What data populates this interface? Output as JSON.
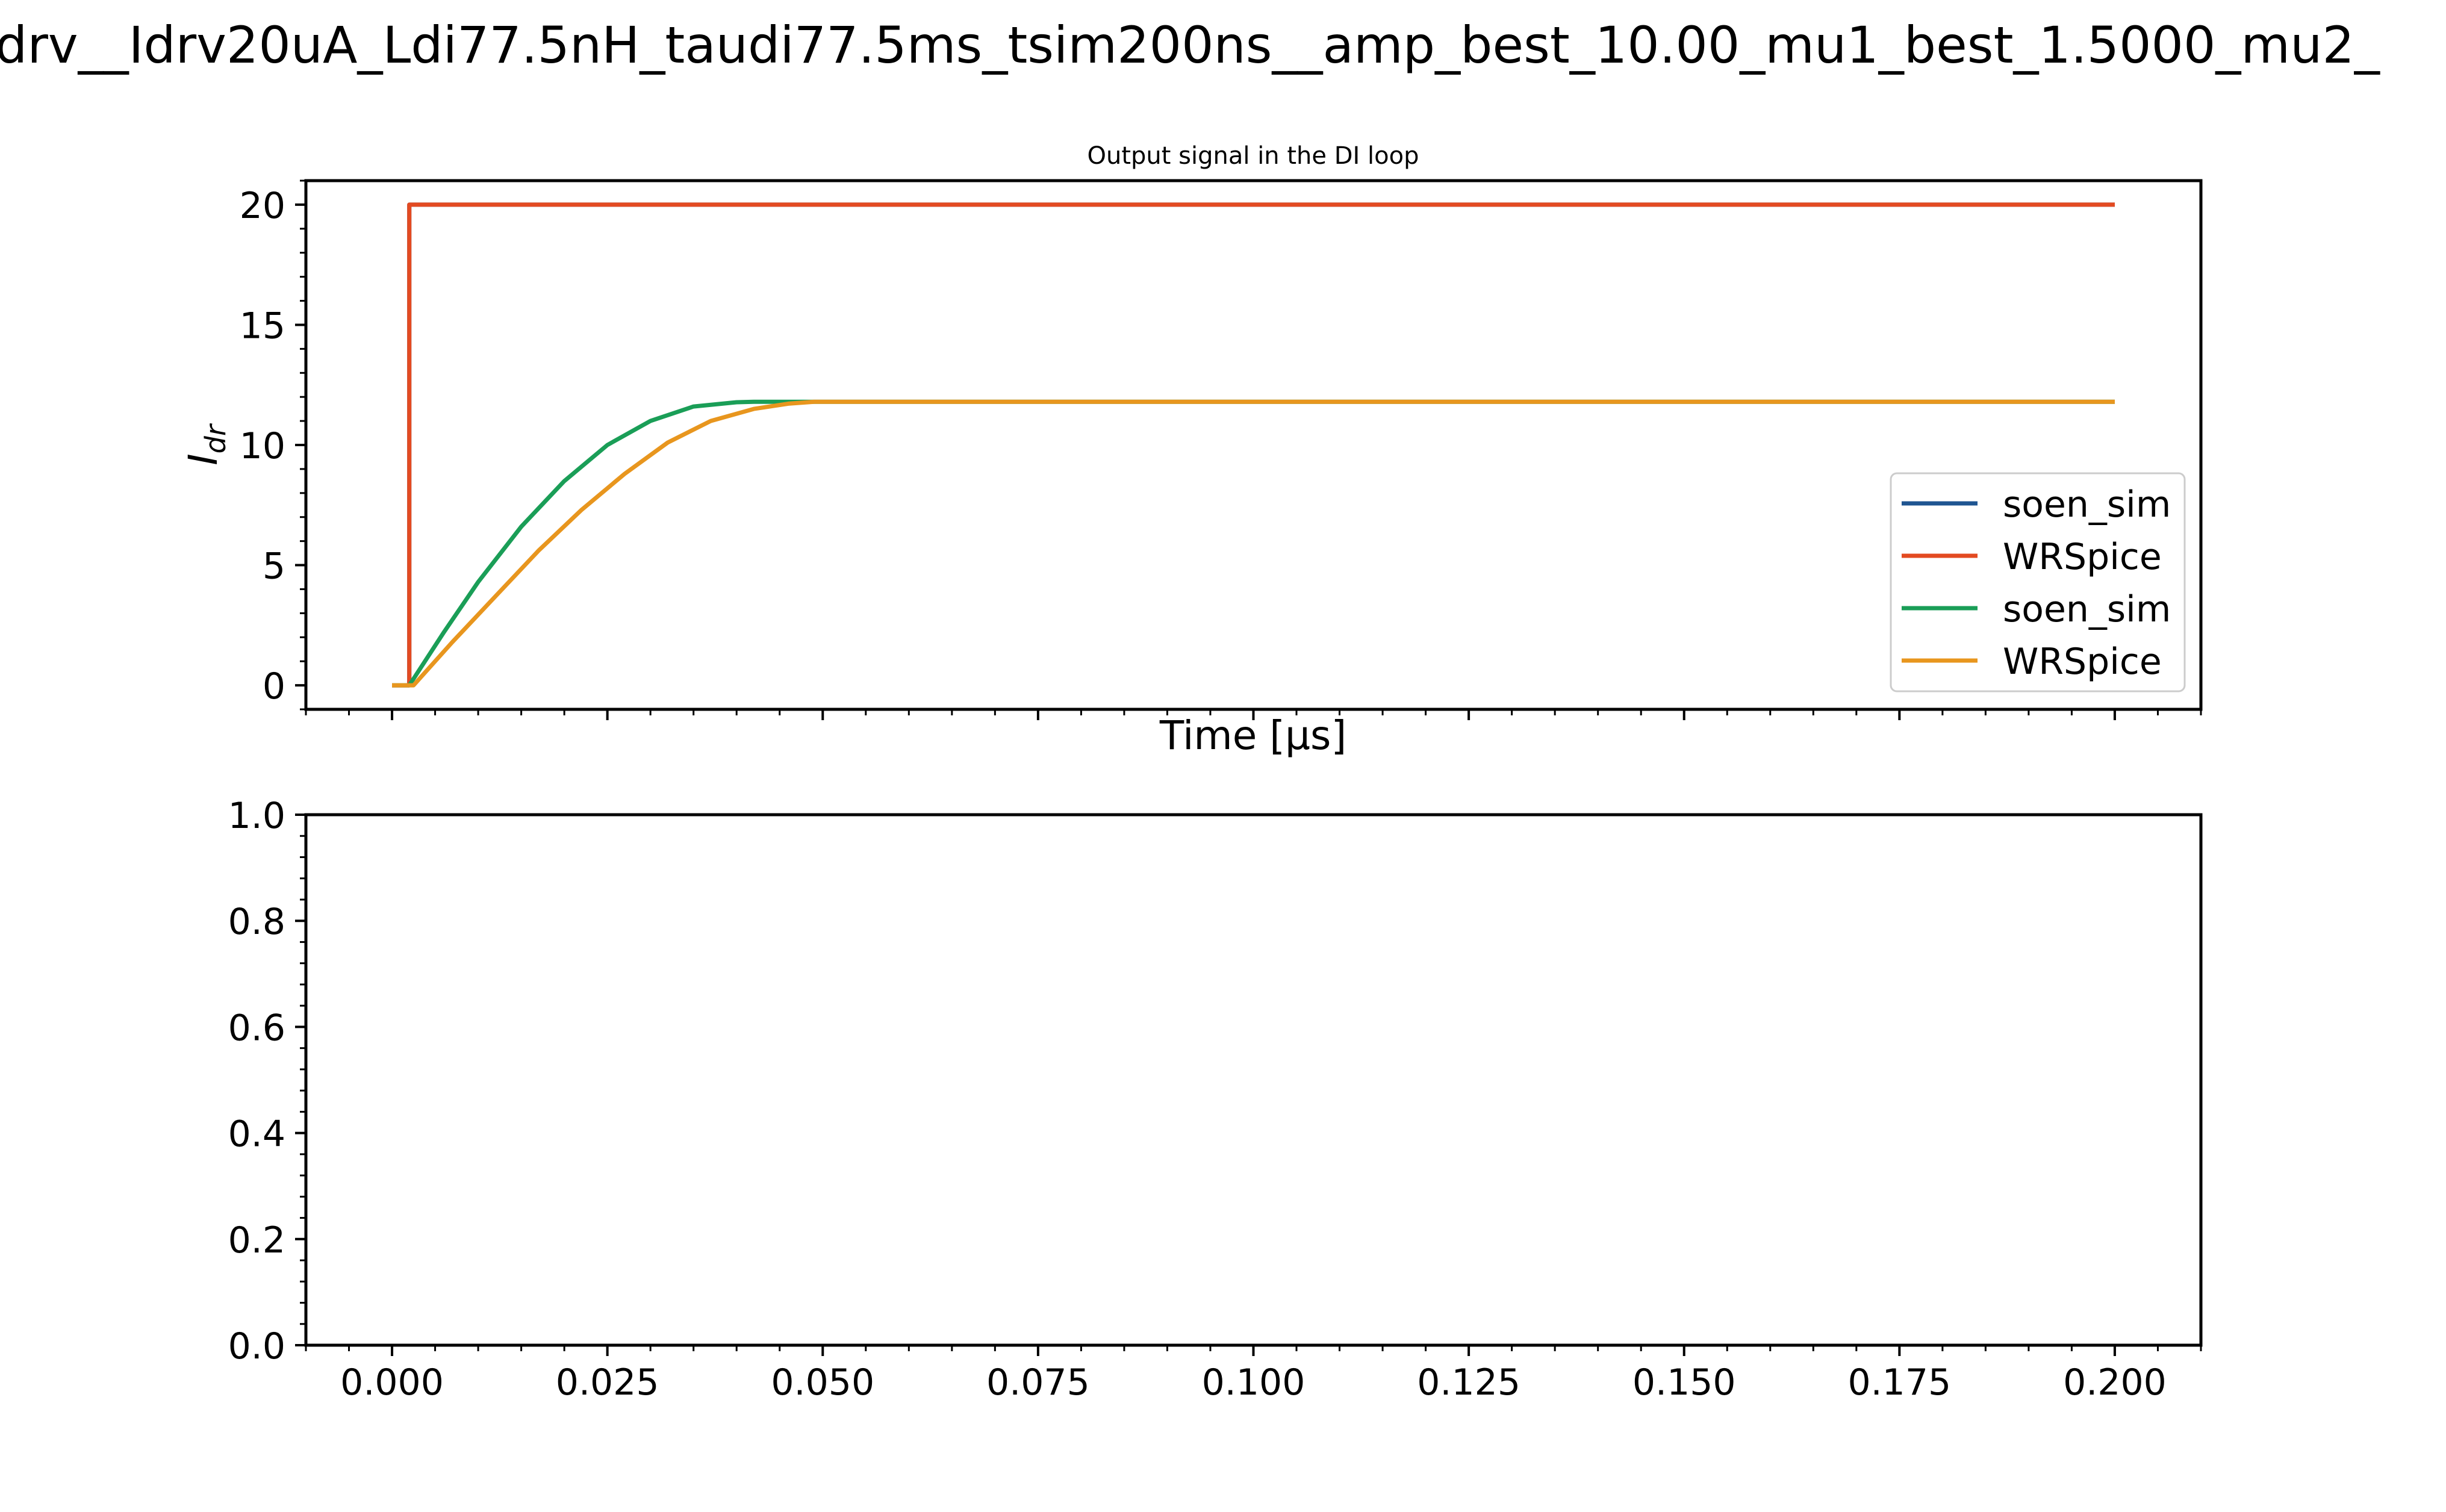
{
  "figure": {
    "suptitle": "drv__Idrv20uA_Ldi77.5nH_taudi77.5ms_tsim200ns__amp_best_10.00_mu1_best_1.5000_mu2_"
  },
  "colors": {
    "soen_sim_1": "#1f5591",
    "wrspice_1": "#e34a21",
    "soen_sim_2": "#1a9e57",
    "wrspice_2": "#e8961e"
  },
  "chart_data": [
    {
      "type": "line",
      "title": "Output signal in the DI loop",
      "xlabel": "Time [μs]",
      "ylabel_main": "I",
      "ylabel_sub": "dr",
      "xlim": [
        -0.01,
        0.21
      ],
      "ylim": [
        -1,
        21
      ],
      "xticks": [
        0.0,
        0.025,
        0.05,
        0.075,
        0.1,
        0.125,
        0.15,
        0.175,
        0.2
      ],
      "yticks": [
        0,
        5,
        10,
        15,
        20
      ],
      "ytick_labels": [
        "0",
        "5",
        "10",
        "15",
        "20"
      ],
      "grid": false,
      "legend_position": "lower right",
      "legend": [
        "soen_sim",
        "WRSpice",
        "soen_sim",
        "WRSpice"
      ],
      "series": [
        {
          "name": "soen_sim",
          "color_key": "soen_sim_1",
          "x": [
            0.0,
            0.002,
            0.002,
            0.2
          ],
          "y": [
            0,
            0,
            20,
            20
          ]
        },
        {
          "name": "WRSpice",
          "color_key": "wrspice_1",
          "x": [
            0.0,
            0.002,
            0.002,
            0.2
          ],
          "y": [
            0,
            0,
            20,
            20
          ]
        },
        {
          "name": "soen_sim",
          "color_key": "soen_sim_2",
          "x": [
            0.0,
            0.002,
            0.006,
            0.01,
            0.015,
            0.02,
            0.025,
            0.03,
            0.035,
            0.04,
            0.042,
            0.045,
            0.05,
            0.2
          ],
          "y": [
            0,
            0,
            2.2,
            4.3,
            6.6,
            8.5,
            10.0,
            11.0,
            11.6,
            11.78,
            11.8,
            11.8,
            11.8,
            11.8
          ]
        },
        {
          "name": "WRSpice",
          "color_key": "wrspice_2",
          "x": [
            0.0,
            0.0025,
            0.007,
            0.012,
            0.017,
            0.022,
            0.027,
            0.032,
            0.037,
            0.042,
            0.046,
            0.049,
            0.052,
            0.2
          ],
          "y": [
            0,
            0,
            1.8,
            3.7,
            5.6,
            7.3,
            8.8,
            10.1,
            11.0,
            11.5,
            11.72,
            11.8,
            11.8,
            11.8
          ]
        }
      ]
    },
    {
      "type": "line",
      "title": "",
      "xlabel": "",
      "xlim": [
        -0.01,
        0.21
      ],
      "ylim": [
        0,
        1
      ],
      "xticks": [
        0.0,
        0.025,
        0.05,
        0.075,
        0.1,
        0.125,
        0.15,
        0.175,
        0.2
      ],
      "xtick_labels": [
        "0.000",
        "0.025",
        "0.050",
        "0.075",
        "0.100",
        "0.125",
        "0.150",
        "0.175",
        "0.200"
      ],
      "yticks": [
        0.0,
        0.2,
        0.4,
        0.6,
        0.8,
        1.0
      ],
      "ytick_labels": [
        "0.0",
        "0.2",
        "0.4",
        "0.6",
        "0.8",
        "1.0"
      ],
      "grid": false,
      "series": []
    }
  ]
}
